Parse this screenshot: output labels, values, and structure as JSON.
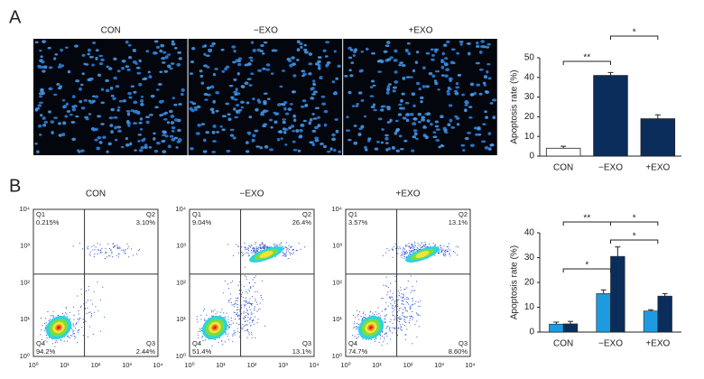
{
  "panel_labels": [
    "A",
    "B"
  ],
  "images": {
    "labels": [
      "CON",
      "−EXO",
      "+EXO"
    ]
  },
  "flow": {
    "ticks": [
      "10⁰",
      "10¹",
      "10²",
      "10³",
      "10⁴"
    ],
    "panels": [
      {
        "title": "CON",
        "quadrants": [
          {
            "name": "Q1",
            "value": "0.215%"
          },
          {
            "name": "Q2",
            "value": "3.10%"
          },
          {
            "name": "Q3",
            "value": "2.44%"
          },
          {
            "name": "Q4",
            "value": "94.2%"
          }
        ]
      },
      {
        "title": "−EXO",
        "quadrants": [
          {
            "name": "Q1",
            "value": "9.04%"
          },
          {
            "name": "Q2",
            "value": "26.4%"
          },
          {
            "name": "Q3",
            "value": "13.1%"
          },
          {
            "name": "Q4",
            "value": "51.4%"
          }
        ]
      },
      {
        "title": "+EXO",
        "quadrants": [
          {
            "name": "Q1",
            "value": "3.57%"
          },
          {
            "name": "Q2",
            "value": "13.1%"
          },
          {
            "name": "Q3",
            "value": "8.60%"
          },
          {
            "name": "Q4",
            "value": "74.7%"
          }
        ]
      }
    ]
  },
  "chart_data": [
    {
      "type": "bar",
      "ylabel": "Apoptosis rate (%)",
      "categories": [
        "CON",
        "−EXO",
        "+EXO"
      ],
      "values": [
        4,
        41,
        19
      ],
      "errors": [
        1,
        1.5,
        2
      ],
      "colors": [
        "#ffffff",
        "#0b2d5c",
        "#0b2d5c"
      ],
      "ylim": [
        0,
        50
      ],
      "yticks": [
        0,
        10,
        20,
        30,
        40,
        50
      ],
      "annotations": [
        {
          "text": "**",
          "from": 0,
          "to": 1
        },
        {
          "text": "*",
          "from": 1,
          "to": 2
        }
      ]
    },
    {
      "type": "grouped_bar",
      "ylabel": "Apoptosis rate (%)",
      "categories": [
        "CON",
        "−EXO",
        "+EXO"
      ],
      "series": [
        {
          "color": "#1e9be0",
          "values": [
            3.2,
            15.5,
            8.5
          ],
          "errors": [
            0.8,
            1.5,
            0.5
          ]
        },
        {
          "color": "#0b2d5c",
          "values": [
            3.3,
            30.5,
            14.5
          ],
          "errors": [
            1,
            3.8,
            1
          ]
        }
      ],
      "ylim": [
        0,
        40
      ],
      "yticks": [
        0,
        10,
        20,
        30,
        40
      ],
      "annotations": [
        {
          "text": "*",
          "from": 0,
          "to": 1
        },
        {
          "text": "**",
          "from": 0,
          "to": 1
        },
        {
          "text": "*",
          "from": 1,
          "to": 2
        },
        {
          "text": "*",
          "from": 1,
          "to": 2
        }
      ]
    }
  ]
}
